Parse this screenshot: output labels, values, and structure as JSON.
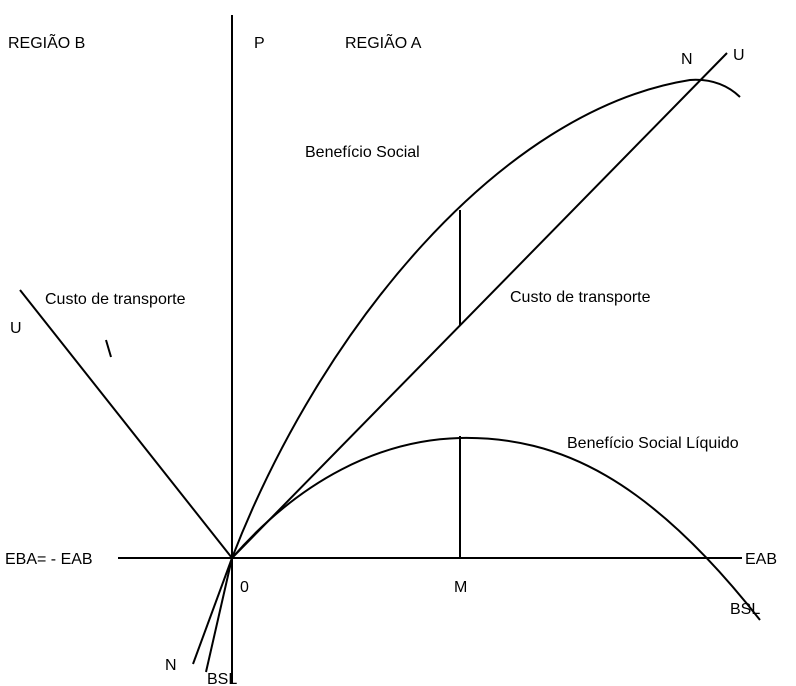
{
  "labels": [
    "REGIÃO B",
    "P",
    "REGIÃO A",
    "N",
    "U",
    "Benefício Social",
    "Custo de transporte",
    "U",
    "Custo de transporte",
    "Benefício Social Líquido",
    "EBA= - EAB",
    "EAB",
    "0",
    "M",
    "BSL",
    "N",
    "BSL"
  ]
}
